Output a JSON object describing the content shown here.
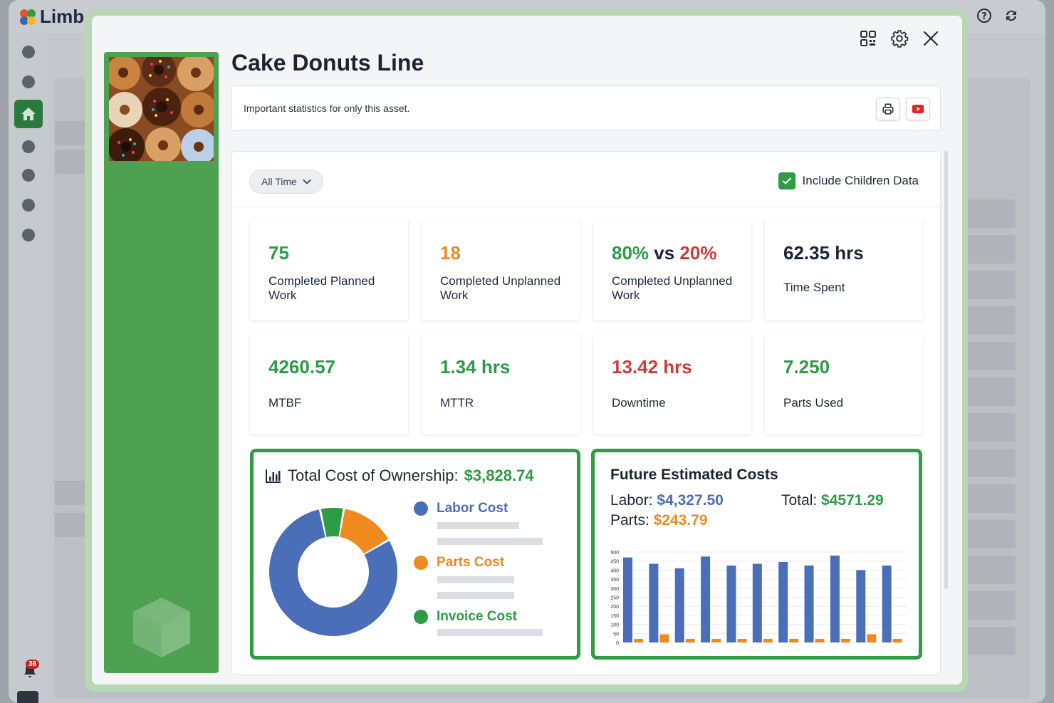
{
  "app": {
    "logo_text": "Limb",
    "notification_count": "36"
  },
  "modal": {
    "title": "Cake Donuts Line",
    "description": "Important statistics for only this asset.",
    "filter": {
      "label": "All Time"
    },
    "include_children": {
      "label": "Include Children Data",
      "checked": true
    }
  },
  "stats": [
    {
      "value": "75",
      "label": "Completed Planned Work",
      "color": "#2e9b45"
    },
    {
      "value": "18",
      "label": "Completed Unplanned Work",
      "color": "#ee8a1e"
    },
    {
      "value_a": "80%",
      "value_sep": " vs ",
      "value_b": "20%",
      "label": "Completed Unplanned Work"
    },
    {
      "value": "62.35 hrs",
      "label": "Time Spent",
      "color": "#1b2432"
    },
    {
      "value": "4260.57",
      "label": "MTBF",
      "color": "#2e9b45"
    },
    {
      "value": "1.34 hrs",
      "label": "MTTR",
      "color": "#2e9b45"
    },
    {
      "value": "13.42 hrs",
      "label": "Downtime",
      "color": "#d23a3a"
    },
    {
      "value": "7.250",
      "label": "Parts Used",
      "color": "#2e9b45"
    }
  ],
  "tco": {
    "label": "Total Cost of Ownership:",
    "value": "$3,828.74",
    "legend": [
      {
        "name": "Labor Cost",
        "color": "#4a6fb8"
      },
      {
        "name": "Parts Cost",
        "color": "#ee8a1e"
      },
      {
        "name": "Invoice Cost",
        "color": "#2e9b45"
      }
    ]
  },
  "future": {
    "title": "Future Estimated Costs",
    "labor_label": "Labor:",
    "labor_value": "$4,327.50",
    "parts_label": "Parts:",
    "parts_value": "$243.79",
    "total_label": "Total:",
    "total_value": "$4571.29"
  },
  "chart_data": [
    {
      "type": "pie",
      "categories": [
        "Labor Cost",
        "Parts Cost",
        "Invoice Cost"
      ],
      "values": [
        80,
        14,
        6
      ],
      "colors": [
        "#4a6fb8",
        "#ee8a1e",
        "#2e9b45"
      ]
    },
    {
      "type": "bar",
      "ylim": [
        0,
        500
      ],
      "yticks": [
        0,
        50,
        100,
        150,
        200,
        250,
        300,
        350,
        400,
        450,
        500
      ],
      "series": [
        {
          "values": [
            470,
            435,
            410,
            475,
            425,
            435,
            445,
            425,
            480,
            400,
            425
          ],
          "color": "#4a6fb8"
        },
        {
          "values": [
            20,
            45,
            20,
            20,
            20,
            20,
            20,
            20,
            20,
            45,
            20
          ],
          "color": "#ee8a1e"
        }
      ],
      "grid": true
    }
  ]
}
